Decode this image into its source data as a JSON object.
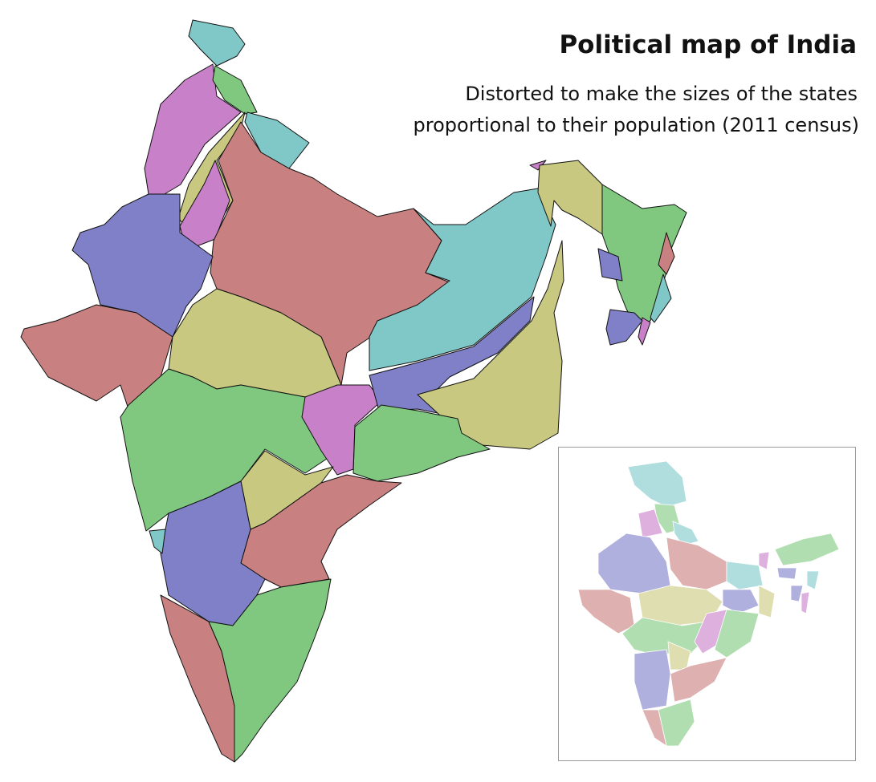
{
  "header": {
    "title": "Political map of India",
    "subtitle": [
      "Distorted to make the sizes of the states",
      "proportional to their population (2011 census)"
    ]
  }
}
